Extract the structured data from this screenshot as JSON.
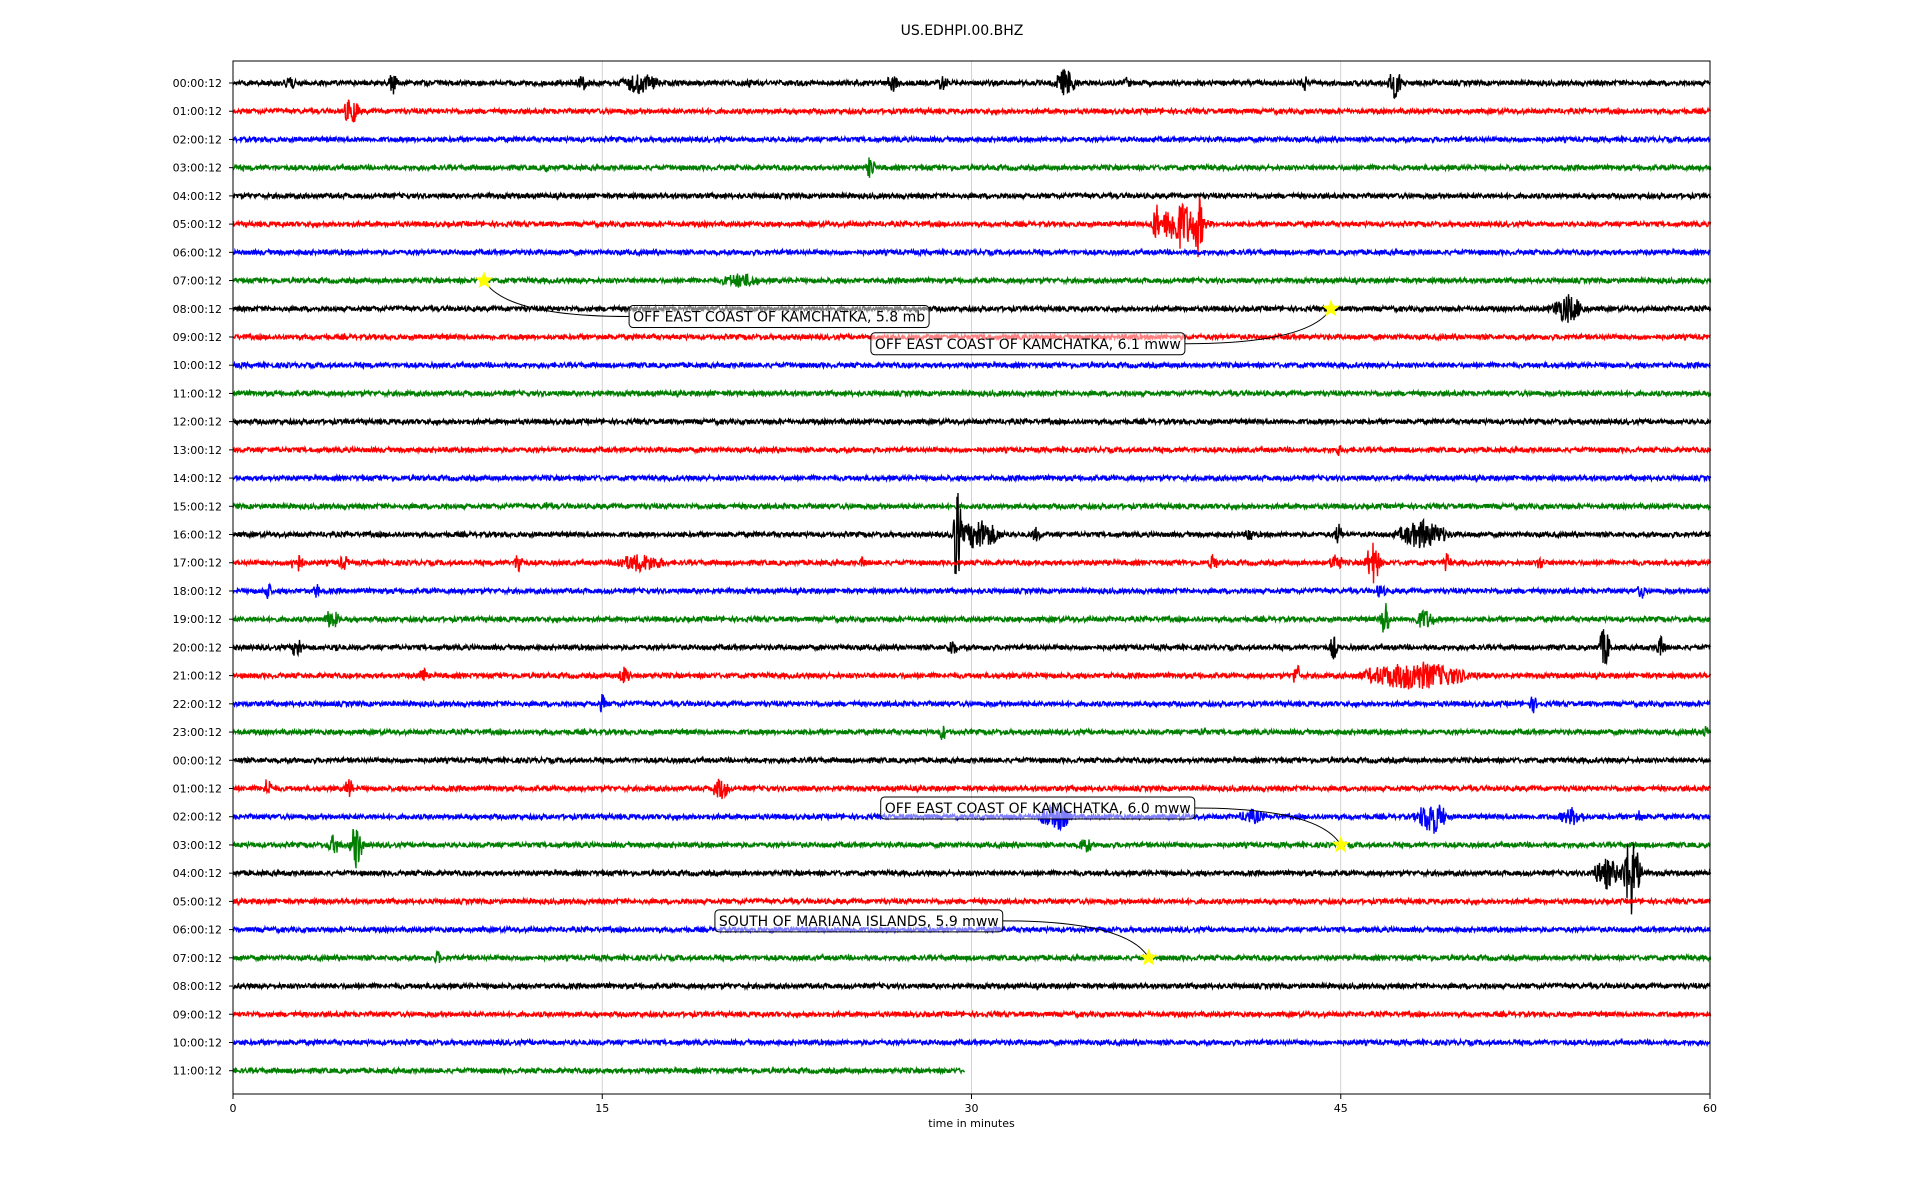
{
  "chart_data": {
    "type": "line",
    "subtype": "helicorder",
    "title": "US.EDHPI.00.BHZ",
    "xlabel": "time in minutes",
    "ylabel": "",
    "xlim": [
      0,
      60
    ],
    "x_ticks": [
      0,
      15,
      30,
      45,
      60
    ],
    "grid": "vertical lines at x ticks",
    "legend": "none",
    "trace_colors": [
      "#000000",
      "#ff0000",
      "#0000ff",
      "#007f00"
    ],
    "event_marker_color": "#ffff00",
    "rows": [
      {
        "label": "00:00:12",
        "end_minute": 60,
        "bursts": [
          {
            "minute": 2.3,
            "amp": 0.3,
            "dur": 0.5
          },
          {
            "minute": 6.5,
            "amp": 0.45,
            "dur": 0.4
          },
          {
            "minute": 14.2,
            "amp": 0.3,
            "dur": 0.6
          },
          {
            "minute": 16.5,
            "amp": 0.4,
            "dur": 1.5
          },
          {
            "minute": 21.0,
            "amp": 0.25,
            "dur": 0.3
          },
          {
            "minute": 26.8,
            "amp": 0.35,
            "dur": 0.5
          },
          {
            "minute": 28.8,
            "amp": 0.3,
            "dur": 0.5
          },
          {
            "minute": 33.8,
            "amp": 0.55,
            "dur": 0.8
          },
          {
            "minute": 36.3,
            "amp": 0.25,
            "dur": 0.3
          },
          {
            "minute": 43.5,
            "amp": 0.35,
            "dur": 0.3
          },
          {
            "minute": 47.2,
            "amp": 0.6,
            "dur": 0.5
          }
        ]
      },
      {
        "label": "01:00:12",
        "end_minute": 60,
        "bursts": [
          {
            "minute": 4.8,
            "amp": 0.55,
            "dur": 0.6
          }
        ]
      },
      {
        "label": "02:00:12",
        "end_minute": 60,
        "bursts": []
      },
      {
        "label": "03:00:12",
        "end_minute": 60,
        "bursts": [
          {
            "minute": 12.7,
            "amp": 0.2,
            "dur": 0.3
          },
          {
            "minute": 25.9,
            "amp": 0.5,
            "dur": 0.3
          }
        ]
      },
      {
        "label": "04:00:12",
        "end_minute": 60,
        "bursts": []
      },
      {
        "label": "05:00:12",
        "end_minute": 60,
        "bursts": [
          {
            "minute": 37.5,
            "amp": 0.8,
            "dur": 0.3
          },
          {
            "minute": 38.5,
            "amp": 0.9,
            "dur": 1.5
          },
          {
            "minute": 39.2,
            "amp": 1.2,
            "dur": 0.4
          }
        ]
      },
      {
        "label": "06:00:12",
        "end_minute": 60,
        "bursts": []
      },
      {
        "label": "07:00:12",
        "end_minute": 60,
        "bursts": [
          {
            "minute": 20.6,
            "amp": 0.3,
            "dur": 1.5
          }
        ]
      },
      {
        "label": "08:00:12",
        "end_minute": 60,
        "bursts": [
          {
            "minute": 54.2,
            "amp": 0.55,
            "dur": 1.2
          }
        ]
      },
      {
        "label": "09:00:12",
        "end_minute": 60,
        "bursts": []
      },
      {
        "label": "10:00:12",
        "end_minute": 60,
        "bursts": []
      },
      {
        "label": "11:00:12",
        "end_minute": 60,
        "bursts": []
      },
      {
        "label": "12:00:12",
        "end_minute": 60,
        "bursts": []
      },
      {
        "label": "13:00:12",
        "end_minute": 60,
        "bursts": [
          {
            "minute": 44.9,
            "amp": 0.25,
            "dur": 0.2
          }
        ]
      },
      {
        "label": "14:00:12",
        "end_minute": 60,
        "bursts": []
      },
      {
        "label": "15:00:12",
        "end_minute": 60,
        "bursts": [
          {
            "minute": 12.7,
            "amp": 0.2,
            "dur": 0.3
          }
        ]
      },
      {
        "label": "16:00:12",
        "end_minute": 60,
        "bursts": [
          {
            "minute": 29.4,
            "amp": 2.0,
            "dur": 0.3
          },
          {
            "minute": 30.3,
            "amp": 0.6,
            "dur": 1.5
          },
          {
            "minute": 32.6,
            "amp": 0.3,
            "dur": 0.4
          },
          {
            "minute": 41.3,
            "amp": 0.35,
            "dur": 0.3
          },
          {
            "minute": 44.9,
            "amp": 0.45,
            "dur": 0.3
          },
          {
            "minute": 48.3,
            "amp": 0.55,
            "dur": 1.8
          }
        ]
      },
      {
        "label": "17:00:12",
        "end_minute": 60,
        "bursts": [
          {
            "minute": 2.6,
            "amp": 0.4,
            "dur": 0.5
          },
          {
            "minute": 4.5,
            "amp": 0.3,
            "dur": 0.4
          },
          {
            "minute": 11.6,
            "amp": 0.5,
            "dur": 0.3
          },
          {
            "minute": 16.5,
            "amp": 0.35,
            "dur": 2.0
          },
          {
            "minute": 25.6,
            "amp": 0.25,
            "dur": 0.3
          },
          {
            "minute": 39.8,
            "amp": 0.4,
            "dur": 0.3
          },
          {
            "minute": 44.8,
            "amp": 0.4,
            "dur": 0.5
          },
          {
            "minute": 46.3,
            "amp": 0.8,
            "dur": 0.5
          },
          {
            "minute": 49.3,
            "amp": 0.4,
            "dur": 0.3
          },
          {
            "minute": 53.1,
            "amp": 0.3,
            "dur": 0.3
          }
        ]
      },
      {
        "label": "18:00:12",
        "end_minute": 60,
        "bursts": [
          {
            "minute": 1.4,
            "amp": 0.4,
            "dur": 0.3
          },
          {
            "minute": 3.4,
            "amp": 0.3,
            "dur": 0.3
          },
          {
            "minute": 46.6,
            "amp": 0.3,
            "dur": 0.4
          },
          {
            "minute": 57.2,
            "amp": 0.35,
            "dur": 0.3
          }
        ]
      },
      {
        "label": "19:00:12",
        "end_minute": 60,
        "bursts": [
          {
            "minute": 4.0,
            "amp": 0.4,
            "dur": 0.6
          },
          {
            "minute": 46.8,
            "amp": 0.8,
            "dur": 0.3
          },
          {
            "minute": 48.4,
            "amp": 0.4,
            "dur": 0.8
          }
        ]
      },
      {
        "label": "20:00:12",
        "end_minute": 60,
        "bursts": [
          {
            "minute": 2.6,
            "amp": 0.45,
            "dur": 0.4
          },
          {
            "minute": 4.2,
            "amp": 0.2,
            "dur": 0.3
          },
          {
            "minute": 29.2,
            "amp": 0.35,
            "dur": 0.4
          },
          {
            "minute": 44.7,
            "amp": 0.5,
            "dur": 0.3
          },
          {
            "minute": 55.7,
            "amp": 0.8,
            "dur": 0.4
          },
          {
            "minute": 58.0,
            "amp": 0.4,
            "dur": 0.4
          }
        ]
      },
      {
        "label": "21:00:12",
        "end_minute": 60,
        "bursts": [
          {
            "minute": 7.7,
            "amp": 0.4,
            "dur": 0.3
          },
          {
            "minute": 15.9,
            "amp": 0.35,
            "dur": 0.5
          },
          {
            "minute": 43.2,
            "amp": 0.5,
            "dur": 0.3
          },
          {
            "minute": 48.0,
            "amp": 0.55,
            "dur": 4.0
          }
        ]
      },
      {
        "label": "22:00:12",
        "end_minute": 60,
        "bursts": [
          {
            "minute": 15.0,
            "amp": 0.4,
            "dur": 0.2
          },
          {
            "minute": 52.8,
            "amp": 0.35,
            "dur": 0.3
          }
        ]
      },
      {
        "label": "23:00:12",
        "end_minute": 60,
        "bursts": [
          {
            "minute": 28.8,
            "amp": 0.35,
            "dur": 0.3
          },
          {
            "minute": 39.4,
            "amp": 0.25,
            "dur": 0.3
          },
          {
            "minute": 59.8,
            "amp": 0.25,
            "dur": 0.3
          }
        ]
      },
      {
        "label": "00:00:12",
        "end_minute": 60,
        "bursts": []
      },
      {
        "label": "01:00:12",
        "end_minute": 60,
        "bursts": [
          {
            "minute": 1.4,
            "amp": 0.45,
            "dur": 0.3
          },
          {
            "minute": 4.7,
            "amp": 0.45,
            "dur": 0.3
          },
          {
            "minute": 19.8,
            "amp": 0.45,
            "dur": 0.6
          }
        ]
      },
      {
        "label": "02:00:12",
        "end_minute": 60,
        "bursts": [
          {
            "minute": 33.4,
            "amp": 0.55,
            "dur": 1.2
          },
          {
            "minute": 41.4,
            "amp": 0.3,
            "dur": 1.0
          },
          {
            "minute": 48.7,
            "amp": 0.7,
            "dur": 1.0
          },
          {
            "minute": 54.4,
            "amp": 0.35,
            "dur": 1.0
          },
          {
            "minute": 57.1,
            "amp": 0.3,
            "dur": 0.3
          }
        ]
      },
      {
        "label": "03:00:12",
        "end_minute": 60,
        "bursts": [
          {
            "minute": 4.1,
            "amp": 0.4,
            "dur": 0.5
          },
          {
            "minute": 5.0,
            "amp": 0.9,
            "dur": 0.4
          },
          {
            "minute": 34.6,
            "amp": 0.35,
            "dur": 0.5
          }
        ]
      },
      {
        "label": "04:00:12",
        "end_minute": 60,
        "bursts": [
          {
            "minute": 55.8,
            "amp": 0.6,
            "dur": 1.0
          },
          {
            "minute": 56.8,
            "amp": 1.6,
            "dur": 0.6
          }
        ]
      },
      {
        "label": "05:00:12",
        "end_minute": 60,
        "bursts": []
      },
      {
        "label": "06:00:12",
        "end_minute": 60,
        "bursts": []
      },
      {
        "label": "07:00:12",
        "end_minute": 60,
        "bursts": [
          {
            "minute": 8.3,
            "amp": 0.3,
            "dur": 0.2
          }
        ]
      },
      {
        "label": "08:00:12",
        "end_minute": 60,
        "bursts": []
      },
      {
        "label": "09:00:12",
        "end_minute": 60,
        "bursts": []
      },
      {
        "label": "10:00:12",
        "end_minute": 60,
        "bursts": []
      },
      {
        "label": "11:00:12",
        "end_minute": 29.7,
        "bursts": []
      }
    ],
    "events": [
      {
        "label": "OFF EAST COAST OF KAMCHATKA, 5.8 mb",
        "row": 7,
        "minute": 10.2,
        "label_anchor": "right-below"
      },
      {
        "label": "OFF EAST COAST OF KAMCHATKA, 6.1 mww",
        "row": 8,
        "minute": 44.6,
        "label_anchor": "left-below"
      },
      {
        "label": "OFF EAST COAST OF KAMCHATKA, 6.0 mww",
        "row": 27,
        "minute": 45.0,
        "label_anchor": "left-above"
      },
      {
        "label": "SOUTH OF MARIANA ISLANDS, 5.9 mww",
        "row": 31,
        "minute": 37.2,
        "label_anchor": "left-above"
      }
    ]
  }
}
